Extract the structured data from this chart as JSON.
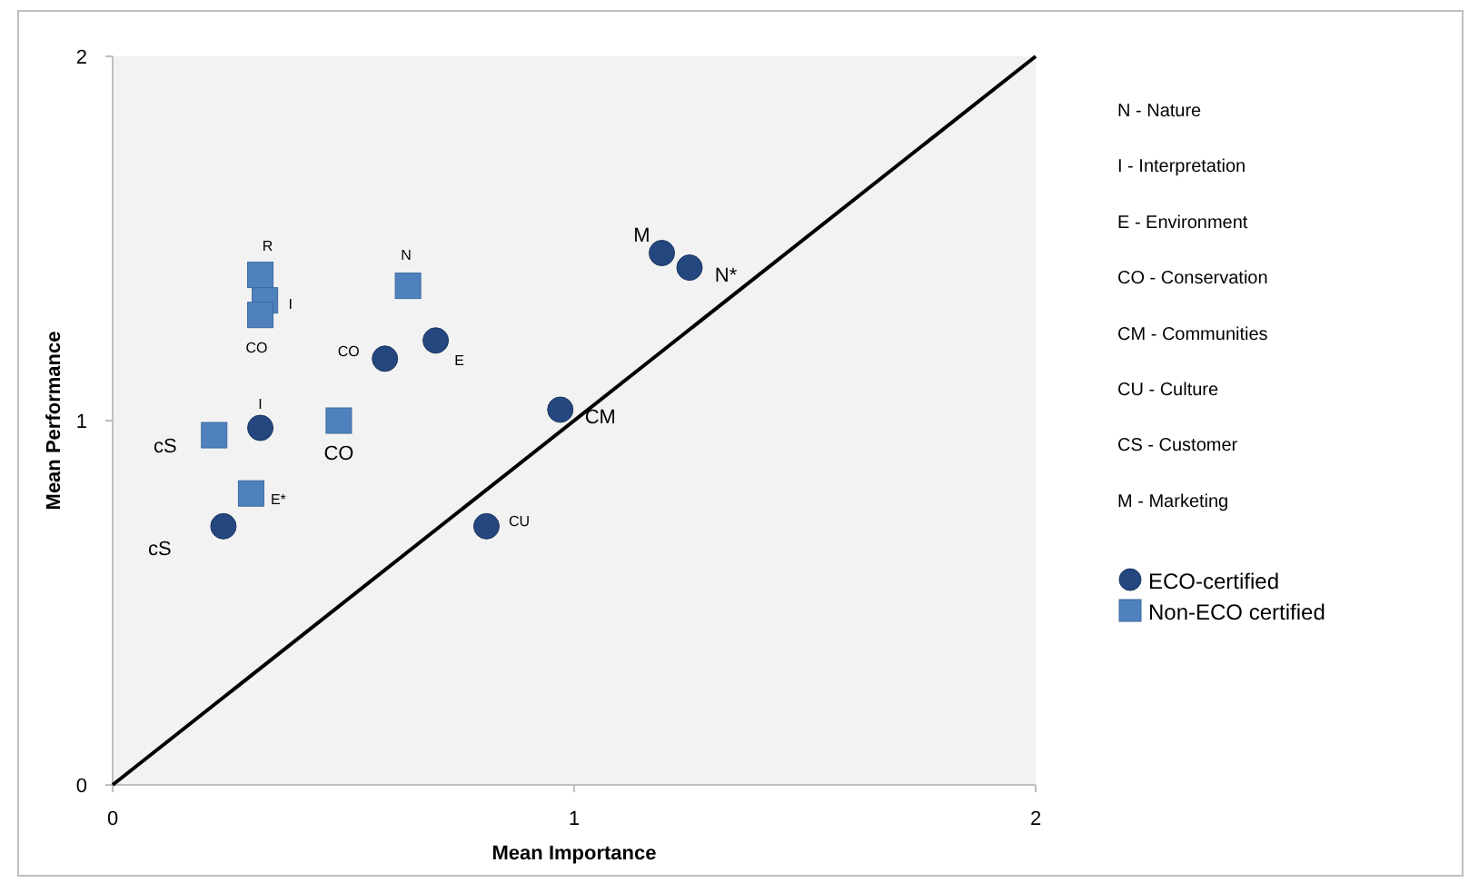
{
  "chart_data": {
    "type": "scatter",
    "xlabel": "Mean Importance",
    "ylabel": "Mean Performance",
    "xlim": [
      0,
      2
    ],
    "ylim": [
      0,
      2
    ],
    "xticks": [
      0,
      1,
      2
    ],
    "yticks": [
      0,
      1,
      2
    ],
    "grid": false,
    "legend": "right",
    "series": [
      {
        "name": "ECO-certified",
        "color": "#24477f",
        "marker": "circle",
        "x": [
          0.24,
          0.32,
          0.59,
          0.7,
          0.97,
          0.81,
          1.19,
          1.25
        ],
        "values": [
          0.71,
          0.98,
          1.17,
          1.22,
          1.03,
          0.71,
          1.46,
          1.42
        ]
      },
      {
        "name": "Non-ECO certified",
        "color": "#4f81bd",
        "marker": "square",
        "x": [
          0.32,
          0.33,
          0.32,
          0.64,
          0.49,
          0.22,
          0.3
        ],
        "values": [
          1.4,
          1.33,
          1.29,
          1.37,
          1.0,
          0.96,
          0.8
        ]
      },
      {
        "type": "line",
        "color": "#000000",
        "marker": "none",
        "line_style": "solid",
        "x": [
          0,
          2
        ],
        "values": [
          0,
          2
        ]
      }
    ],
    "annotations": [
      "N - Nature",
      "I - Interpretation",
      "E - Environment",
      "CO - Conservation",
      "CM - Communities",
      "CU - Culture",
      "CS - Customer",
      "M - Marketing",
      {
        "text": "cS",
        "x": 0.24,
        "y": 0.71
      },
      {
        "text": "I",
        "x": 0.32,
        "y": 0.98
      },
      {
        "text": "CO",
        "x": 0.59,
        "y": 1.17
      },
      {
        "text": "E",
        "x": 0.7,
        "y": 1.22
      },
      {
        "text": "CM",
        "x": 0.97,
        "y": 1.03
      },
      {
        "text": "CU",
        "x": 0.81,
        "y": 0.71
      },
      {
        "text": "M",
        "x": 1.19,
        "y": 1.46
      },
      {
        "text": "N*",
        "x": 1.25,
        "y": 1.42
      },
      {
        "text": "R",
        "x": 0.32,
        "y": 1.4
      },
      {
        "text": "I",
        "x": 0.33,
        "y": 1.33
      },
      {
        "text": "CO",
        "x": 0.32,
        "y": 1.29
      },
      {
        "text": "N",
        "x": 0.64,
        "y": 1.37
      },
      {
        "text": "CO",
        "x": 0.49,
        "y": 1.0
      },
      {
        "text": "cS",
        "x": 0.22,
        "y": 0.96
      },
      {
        "text": "E*",
        "x": 0.3,
        "y": 0.8
      }
    ]
  }
}
